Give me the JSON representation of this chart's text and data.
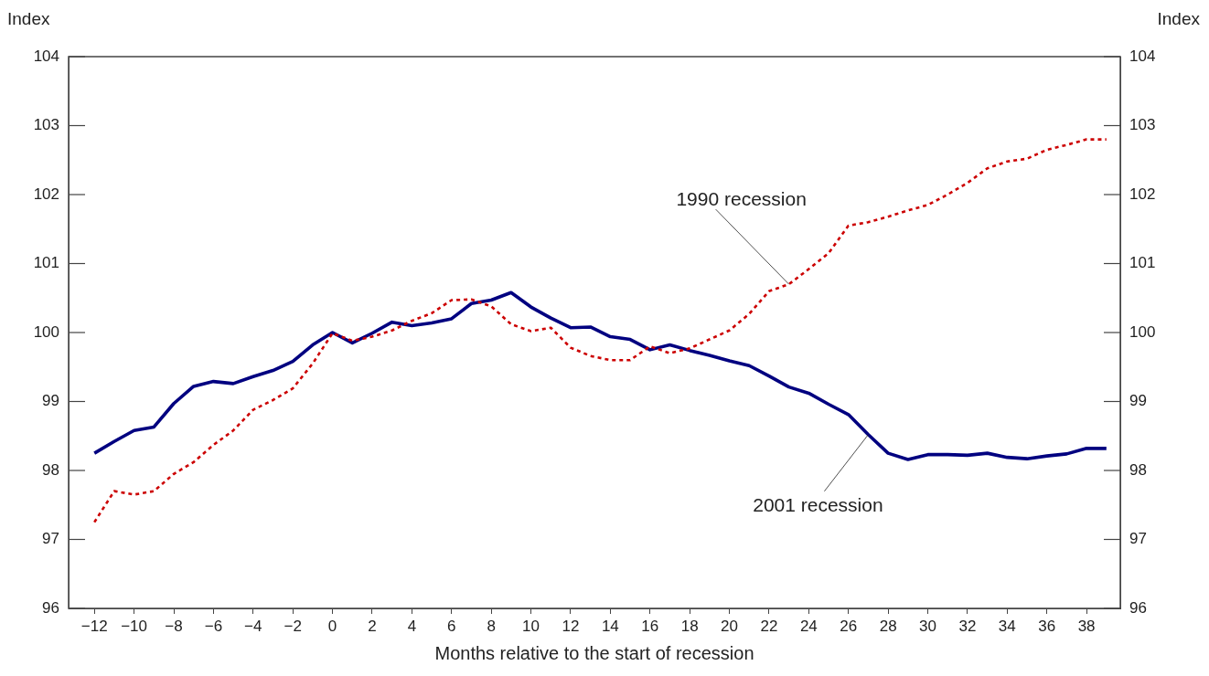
{
  "chart_data": {
    "type": "line",
    "xlabel": "Months relative to the start of recession",
    "ylabel": "Index",
    "y2label": "Index",
    "x": [
      -12,
      -11,
      -10,
      -9,
      -8,
      -7,
      -6,
      -5,
      -4,
      -3,
      -2,
      -1,
      0,
      1,
      2,
      3,
      4,
      5,
      6,
      7,
      8,
      9,
      10,
      11,
      12,
      13,
      14,
      15,
      16,
      17,
      18,
      19,
      20,
      21,
      22,
      23,
      24,
      25,
      26,
      27,
      28,
      29,
      30,
      31,
      32,
      33,
      34,
      35,
      36,
      37,
      38,
      39
    ],
    "series": [
      {
        "name": "1990 recession",
        "color": "#cc0000",
        "line_style": "dotted",
        "values": [
          97.25,
          97.7,
          97.65,
          97.7,
          97.95,
          98.12,
          98.37,
          98.58,
          98.88,
          99.02,
          99.19,
          99.55,
          99.99,
          99.88,
          99.94,
          100.03,
          100.17,
          100.28,
          100.47,
          100.48,
          100.38,
          100.12,
          100.02,
          100.07,
          99.78,
          99.66,
          99.6,
          99.6,
          99.8,
          99.7,
          99.77,
          99.9,
          100.03,
          100.27,
          100.6,
          100.7,
          100.92,
          101.15,
          101.55,
          101.6,
          101.68,
          101.77,
          101.85,
          102.0,
          102.17,
          102.38,
          102.48,
          102.52,
          102.65,
          102.72,
          102.8,
          102.8
        ]
      },
      {
        "name": "2001 recession",
        "color": "#000080",
        "line_style": "solid",
        "values": [
          98.25,
          98.42,
          98.58,
          98.63,
          98.97,
          99.22,
          99.29,
          99.26,
          99.36,
          99.45,
          99.58,
          99.82,
          100.0,
          99.85,
          99.99,
          100.15,
          100.1,
          100.14,
          100.2,
          100.42,
          100.47,
          100.58,
          100.37,
          100.21,
          100.07,
          100.08,
          99.94,
          99.9,
          99.75,
          99.82,
          99.74,
          99.67,
          99.59,
          99.52,
          99.37,
          99.21,
          99.12,
          98.96,
          98.81,
          98.52,
          98.25,
          98.16,
          98.23,
          98.23,
          98.22,
          98.25,
          98.19,
          98.17,
          98.21,
          98.24,
          98.32,
          98.32
        ]
      }
    ],
    "xlim": [
      -13.3,
      39.7
    ],
    "xticks": [
      {
        "value": -12,
        "label": "−12"
      },
      {
        "value": -10,
        "label": "−10"
      },
      {
        "value": -8,
        "label": "−8"
      },
      {
        "value": -6,
        "label": "−6"
      },
      {
        "value": -4,
        "label": "−4"
      },
      {
        "value": -2,
        "label": "−2"
      },
      0,
      2,
      4,
      6,
      8,
      10,
      12,
      14,
      16,
      18,
      20,
      22,
      24,
      26,
      28,
      30,
      32,
      34,
      36,
      38
    ],
    "ylim": [
      96,
      104
    ],
    "yticks": [
      96,
      97,
      98,
      99,
      100,
      101,
      102,
      103,
      104
    ],
    "y2lim": [
      96,
      104
    ],
    "y2ticks": [
      96,
      97,
      98,
      99,
      100,
      101,
      102,
      103,
      104
    ],
    "grid": false,
    "legend": false,
    "marker": "none"
  }
}
